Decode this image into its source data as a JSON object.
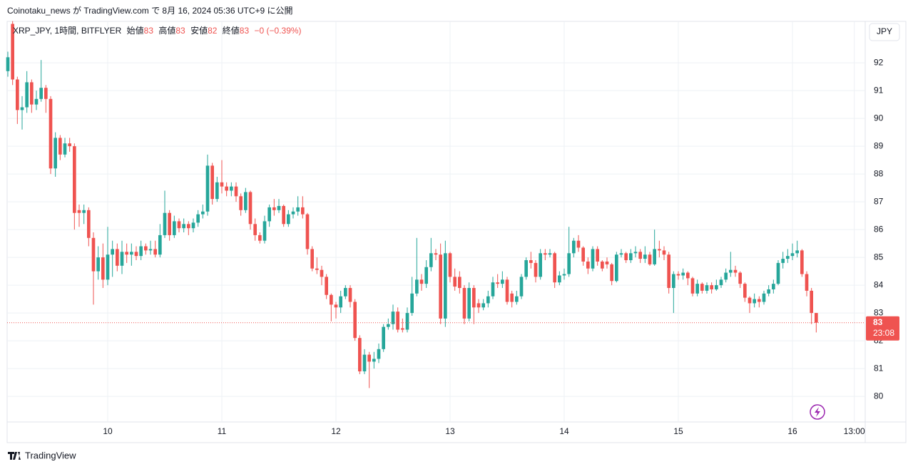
{
  "header": {
    "text": "Coinotaku_news が TradingView.com で 8月 16, 2024 05:36 UTC+9 に公開"
  },
  "legend": {
    "symbol": "XRP_JPY, 1時間, BITFLYER",
    "open_label": "始値",
    "open": 83,
    "high_label": "高値",
    "high": 83,
    "low_label": "安値",
    "low": 82,
    "close_label": "終値",
    "close": 83,
    "change": "−0 (−0.39%)"
  },
  "currency": "JPY",
  "footer": {
    "brand": "TradingView"
  },
  "chart_data": {
    "type": "candlestick",
    "up_color": "#26a69a",
    "down_color": "#ef5350",
    "grid": true,
    "xlim": [
      2.85,
      183.3
    ],
    "xticks": [
      {
        "value": 24,
        "label": "10"
      },
      {
        "value": 48,
        "label": "11"
      },
      {
        "value": 72,
        "label": "12"
      },
      {
        "value": 96,
        "label": "13"
      },
      {
        "value": 120,
        "label": "14"
      },
      {
        "value": 144,
        "label": "15"
      },
      {
        "value": 168,
        "label": "16"
      },
      {
        "value": 181,
        "label": "13:00"
      }
    ],
    "ylim": [
      79.08,
      93.49
    ],
    "yticks": [
      80,
      81,
      82,
      83,
      84,
      85,
      86,
      87,
      88,
      89,
      90,
      91,
      92
    ],
    "current_price": {
      "value": 82.65,
      "label": "83"
    },
    "countdown": "23:08",
    "x": [
      3,
      4,
      5,
      6,
      7,
      8,
      9,
      10,
      11,
      12,
      13,
      14,
      15,
      16,
      17,
      18,
      19,
      20,
      21,
      22,
      23,
      24,
      25,
      26,
      27,
      28,
      29,
      30,
      31,
      32,
      33,
      34,
      35,
      36,
      37,
      38,
      39,
      40,
      41,
      42,
      43,
      44,
      45,
      46,
      47,
      48,
      49,
      50,
      51,
      52,
      53,
      54,
      55,
      56,
      57,
      58,
      59,
      60,
      61,
      62,
      63,
      64,
      65,
      66,
      67,
      68,
      69,
      70,
      71,
      72,
      73,
      74,
      75,
      76,
      77,
      78,
      79,
      80,
      81,
      82,
      83,
      84,
      85,
      86,
      87,
      88,
      89,
      90,
      91,
      92,
      93,
      94,
      95,
      96,
      97,
      98,
      99,
      100,
      101,
      102,
      103,
      104,
      105,
      106,
      107,
      108,
      109,
      110,
      111,
      112,
      113,
      114,
      115,
      116,
      117,
      118,
      119,
      120,
      121,
      122,
      123,
      124,
      125,
      126,
      127,
      128,
      129,
      130,
      131,
      132,
      133,
      134,
      135,
      136,
      137,
      138,
      139,
      140,
      141,
      142,
      143,
      144,
      145,
      146,
      147,
      148,
      149,
      150,
      151,
      152,
      153,
      154,
      155,
      156,
      157,
      158,
      159,
      160,
      161,
      162,
      163,
      164,
      165,
      166,
      167,
      168,
      169,
      170,
      171,
      172,
      173
    ],
    "open": [
      91.7,
      93.4,
      91.4,
      90.3,
      90.4,
      91.3,
      90.5,
      90.7,
      91.1,
      90.7,
      88.2,
      89.3,
      88.7,
      89.1,
      89.0,
      86.7,
      86.6,
      86.7,
      85.7,
      84.5,
      85.0,
      84.2,
      85.1,
      85.3,
      84.7,
      85.2,
      85.1,
      85.2,
      85.05,
      85.4,
      85.25,
      85.3,
      85.1,
      85.8,
      86.6,
      85.8,
      86.3,
      86.05,
      86.2,
      86.05,
      86.25,
      86.55,
      86.65,
      88.3,
      87.1,
      87.7,
      87.55,
      87.4,
      87.55,
      87.2,
      86.7,
      87.35,
      86.2,
      85.8,
      85.6,
      86.3,
      86.8,
      86.7,
      86.85,
      86.2,
      86.55,
      86.65,
      86.8,
      86.55,
      85.3,
      84.6,
      84.55,
      84.3,
      83.65,
      83.3,
      83.2,
      83.6,
      83.9,
      83.4,
      82.1,
      80.9,
      81.5,
      81.25,
      81.35,
      81.7,
      82.5,
      82.6,
      83.05,
      82.45,
      82.4,
      83.0,
      83.7,
      84.2,
      84.05,
      84.65,
      85.15,
      85.1,
      82.8,
      85.15,
      84.3,
      84.3,
      83.9,
      82.8,
      83.9,
      83.35,
      83.2,
      83.35,
      83.6,
      84.1,
      84.05,
      84.2,
      83.7,
      83.4,
      83.6,
      84.3,
      84.9,
      84.8,
      84.3,
      85.15,
      85.1,
      85.15,
      84.1,
      84.35,
      84.4,
      85.15,
      85.6,
      85.35,
      84.85,
      84.6,
      85.3,
      84.85,
      84.85,
      84.75,
      84.15,
      85.1,
      85.15,
      84.9,
      85.15,
      85.2,
      84.95,
      85.1,
      84.75,
      85.3,
      85.25,
      85.1,
      83.9,
      84.4,
      84.35,
      84.45,
      84.25,
      83.7,
      84.05,
      83.8,
      84.0,
      83.85,
      84.0,
      84.2,
      84.45,
      84.55,
      84.45,
      84.05,
      83.55,
      83.35,
      83.5,
      83.4,
      83.7,
      83.85,
      84.05,
      84.8,
      84.95,
      85.05,
      85.15,
      85.25,
      84.4,
      83.8,
      83.0
    ],
    "close": [
      92.2,
      91.4,
      90.3,
      90.4,
      91.3,
      90.5,
      90.7,
      91.1,
      90.7,
      88.2,
      89.3,
      88.7,
      89.1,
      89.0,
      86.6,
      86.6,
      86.7,
      85.7,
      84.5,
      85.0,
      84.2,
      85.1,
      85.3,
      84.7,
      85.2,
      85.1,
      85.2,
      85.05,
      85.4,
      85.25,
      85.3,
      85.1,
      85.8,
      86.6,
      85.8,
      86.3,
      86.05,
      86.2,
      86.05,
      86.25,
      86.55,
      86.65,
      88.3,
      87.1,
      87.7,
      87.55,
      87.4,
      87.55,
      87.2,
      86.7,
      87.35,
      86.2,
      85.8,
      85.6,
      86.3,
      86.8,
      86.7,
      86.85,
      86.2,
      86.55,
      86.65,
      86.8,
      86.55,
      85.3,
      84.6,
      84.55,
      84.3,
      83.65,
      83.3,
      83.2,
      83.6,
      83.9,
      83.4,
      82.1,
      80.9,
      81.5,
      81.25,
      81.35,
      81.7,
      82.5,
      82.6,
      83.05,
      82.4,
      82.4,
      83.0,
      83.7,
      84.2,
      84.05,
      84.65,
      85.15,
      85.1,
      82.8,
      85.15,
      84.3,
      83.95,
      83.9,
      82.8,
      83.9,
      83.2,
      83.2,
      83.35,
      83.6,
      84.1,
      84.05,
      84.2,
      83.4,
      83.4,
      83.6,
      84.3,
      84.9,
      84.8,
      84.3,
      85.15,
      85.1,
      85.15,
      84.1,
      84.35,
      84.4,
      85.15,
      85.6,
      85.35,
      84.85,
      84.6,
      85.3,
      84.85,
      84.6,
      84.75,
      84.15,
      85.1,
      85.15,
      84.9,
      85.15,
      85.2,
      84.95,
      85.1,
      84.75,
      85.3,
      85.25,
      85.1,
      83.9,
      84.4,
      84.35,
      84.45,
      84.25,
      83.7,
      84.05,
      83.8,
      84.0,
      83.85,
      84.0,
      84.2,
      84.45,
      84.55,
      84.45,
      84.05,
      83.55,
      83.35,
      83.5,
      83.4,
      83.7,
      83.85,
      84.05,
      84.8,
      84.95,
      85.05,
      85.15,
      85.25,
      84.4,
      83.8,
      83.0,
      82.65
    ],
    "high": [
      92.4,
      93.5,
      91.5,
      90.8,
      91.7,
      91.4,
      91.0,
      92.1,
      91.2,
      90.8,
      89.5,
      89.4,
      89.3,
      89.3,
      89.1,
      86.9,
      86.9,
      86.8,
      85.9,
      85.4,
      85.5,
      86.1,
      85.6,
      85.5,
      85.6,
      85.5,
      85.5,
      85.4,
      85.6,
      85.5,
      85.6,
      85.6,
      86.2,
      87.4,
      86.7,
      86.5,
      86.4,
      86.4,
      86.3,
      86.4,
      86.7,
      86.9,
      88.7,
      88.4,
      87.9,
      88.5,
      87.7,
      87.7,
      87.7,
      87.3,
      87.5,
      87.4,
      86.4,
      85.9,
      86.5,
      86.9,
      87.1,
      87.1,
      86.9,
      86.7,
      86.8,
      87.2,
      87.2,
      86.6,
      85.4,
      85.0,
      84.7,
      84.4,
      83.7,
      83.4,
      83.8,
      84.0,
      84.0,
      83.5,
      82.2,
      81.7,
      81.6,
      81.6,
      81.9,
      82.6,
      82.8,
      83.3,
      83.2,
      82.8,
      83.2,
      84.3,
      85.7,
      84.4,
      84.9,
      85.7,
      85.3,
      85.5,
      85.6,
      85.2,
      84.6,
      84.5,
      84.0,
      84.1,
      84.0,
      83.5,
      83.5,
      83.8,
      84.3,
      84.4,
      84.5,
      84.3,
      83.8,
      83.8,
      84.4,
      85.0,
      85.2,
      84.9,
      85.3,
      85.3,
      85.3,
      85.2,
      84.5,
      84.6,
      86.1,
      85.7,
      85.8,
      85.4,
      85.0,
      85.4,
      85.4,
      84.9,
      85.0,
      84.8,
      85.2,
      85.3,
      85.2,
      85.3,
      85.4,
      85.3,
      85.4,
      85.2,
      86.0,
      85.6,
      85.4,
      85.2,
      84.5,
      84.5,
      84.6,
      84.5,
      84.3,
      84.2,
      84.1,
      84.1,
      84.1,
      84.2,
      84.3,
      84.6,
      85.2,
      84.7,
      84.5,
      84.1,
      83.6,
      83.7,
      83.6,
      83.8,
      84.0,
      84.2,
      84.9,
      85.2,
      85.3,
      85.5,
      85.6,
      85.3,
      84.5,
      83.9,
      83.0
    ],
    "low": [
      91.5,
      91.2,
      89.8,
      89.6,
      90.2,
      90.2,
      90.3,
      90.6,
      90.2,
      88.0,
      87.9,
      88.5,
      88.6,
      88.8,
      86.0,
      86.1,
      86.2,
      85.4,
      83.3,
      84.2,
      83.9,
      84.0,
      84.3,
      84.5,
      84.4,
      84.8,
      84.7,
      84.9,
      84.9,
      85.1,
      85.1,
      85.0,
      85.0,
      85.7,
      85.6,
      85.7,
      85.9,
      85.9,
      85.8,
      85.9,
      86.1,
      86.4,
      86.5,
      86.9,
      87.0,
      87.3,
      87.2,
      87.2,
      87.0,
      86.5,
      86.6,
      86.0,
      85.6,
      85.5,
      85.5,
      86.1,
      86.5,
      86.6,
      86.1,
      86.1,
      86.4,
      86.5,
      86.4,
      85.1,
      84.5,
      84.4,
      84.0,
      83.5,
      82.7,
      82.8,
      83.0,
      83.5,
      83.2,
      82.0,
      80.8,
      80.8,
      80.3,
      81.0,
      81.2,
      81.6,
      82.4,
      82.4,
      82.3,
      82.3,
      82.3,
      82.9,
      83.6,
      83.8,
      83.9,
      84.5,
      84.9,
      82.6,
      82.5,
      84.1,
      83.8,
      83.7,
      82.6,
      82.7,
      82.6,
      83.0,
      83.1,
      83.2,
      83.5,
      83.9,
      83.9,
      83.3,
      83.2,
      83.3,
      83.5,
      84.2,
      84.6,
      84.1,
      84.2,
      84.9,
      85.0,
      83.9,
      84.0,
      84.2,
      84.3,
      85.0,
      85.2,
      84.7,
      84.4,
      84.5,
      84.7,
      84.5,
      84.6,
      84.0,
      84.1,
      85.0,
      84.8,
      84.8,
      85.0,
      84.8,
      84.8,
      84.7,
      84.7,
      85.0,
      84.9,
      83.7,
      83.0,
      84.2,
      84.2,
      84.0,
      83.6,
      83.6,
      83.7,
      83.7,
      83.7,
      83.8,
      83.9,
      84.1,
      84.3,
      84.3,
      83.9,
      83.4,
      83.0,
      83.2,
      83.2,
      83.3,
      83.6,
      83.7,
      84.0,
      84.6,
      84.8,
      84.9,
      85.0,
      84.3,
      83.6,
      82.6,
      82.3
    ]
  }
}
